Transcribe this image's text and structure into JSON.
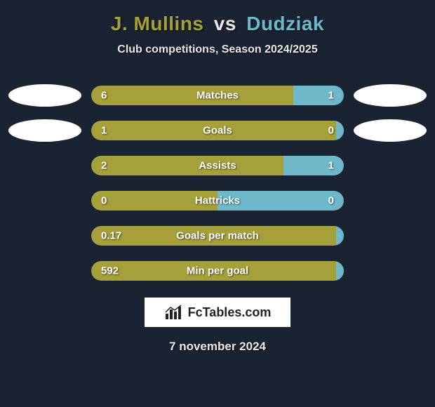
{
  "background_color": "#1a2332",
  "header": {
    "player1": "J. Mullins",
    "player1_color": "#a6a03a",
    "player2": "Dudziak",
    "player2_color": "#6fb8c9",
    "vs": "vs",
    "subtitle": "Club competitions, Season 2024/2025"
  },
  "bars": {
    "shell_bg": "#2b3a4d",
    "left_color": "#a6a03a",
    "right_color": "#6fb8c9",
    "text_color": "#ffffff",
    "rows": [
      {
        "label": "Matches",
        "left": "6",
        "right": "1",
        "left_pct": 80,
        "right_pct": 20,
        "show_badges": true
      },
      {
        "label": "Goals",
        "left": "1",
        "right": "0",
        "left_pct": 97,
        "right_pct": 3,
        "show_badges": true
      },
      {
        "label": "Assists",
        "left": "2",
        "right": "1",
        "left_pct": 76,
        "right_pct": 24,
        "show_badges": false
      },
      {
        "label": "Hattricks",
        "left": "0",
        "right": "0",
        "left_pct": 50,
        "right_pct": 50,
        "show_badges": false
      },
      {
        "label": "Goals per match",
        "left": "0.17",
        "right": "",
        "left_pct": 97,
        "right_pct": 3,
        "show_badges": false
      },
      {
        "label": "Min per goal",
        "left": "592",
        "right": "",
        "left_pct": 97,
        "right_pct": 3,
        "show_badges": false
      }
    ]
  },
  "brand": {
    "text": "FcTables.com",
    "icon_color": "#222222",
    "bg": "#ffffff"
  },
  "date": "7 november 2024"
}
